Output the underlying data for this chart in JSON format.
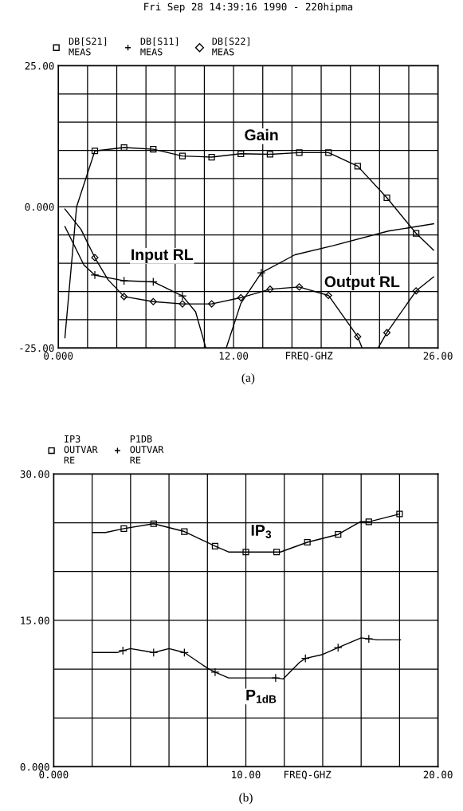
{
  "chart_data": [
    {
      "type": "line",
      "title": "Fri Sep 28 14:39:16 1990 - 220hipma",
      "xlabel": "FREQ-GHZ",
      "xlim": [
        0,
        26
      ],
      "xticks": [
        {
          "value": 0,
          "label": "0.000"
        },
        {
          "value": 2,
          "label": null
        },
        {
          "value": 4,
          "label": null
        },
        {
          "value": 6,
          "label": null
        },
        {
          "value": 8,
          "label": null
        },
        {
          "value": 10,
          "label": null
        },
        {
          "value": 12,
          "label": "12.00"
        },
        {
          "value": 14,
          "label": null
        },
        {
          "value": 16,
          "label": null
        },
        {
          "value": 18,
          "label": null
        },
        {
          "value": 20,
          "label": null
        },
        {
          "value": 22,
          "label": null
        },
        {
          "value": 24,
          "label": null
        },
        {
          "value": 26,
          "label": "26.00"
        }
      ],
      "ylim": [
        -25,
        25
      ],
      "yticks": [
        {
          "value": -25,
          "label": "-25.00"
        },
        {
          "value": -20,
          "label": null
        },
        {
          "value": -15,
          "label": null
        },
        {
          "value": -10,
          "label": null
        },
        {
          "value": -5,
          "label": null
        },
        {
          "value": 0,
          "label": "0.000"
        },
        {
          "value": 5,
          "label": null
        },
        {
          "value": 10,
          "label": null
        },
        {
          "value": 15,
          "label": null
        },
        {
          "value": 20,
          "label": null
        },
        {
          "value": 25,
          "label": "25.00"
        }
      ],
      "grid": true,
      "legend": "top left",
      "line_style": "solid",
      "series": [
        {
          "name": "DB[S21]\nMEAS",
          "type": "scatter",
          "marker": "square",
          "color": "#000000",
          "x": [
            2.5,
            4.5,
            6.5,
            8.5,
            10.5,
            12.5,
            14.5,
            16.5,
            18.5,
            20.5,
            22.5,
            24.5
          ],
          "values": [
            9.9,
            10.5,
            10.2,
            9.0,
            8.8,
            9.4,
            9.3,
            9.6,
            9.6,
            7.2,
            1.6,
            -4.7
          ]
        },
        {
          "name": "DB[S11]\nMEAS",
          "type": "scatter",
          "marker": "cross",
          "color": "#000000",
          "x": [
            2.5,
            4.5,
            6.5,
            8.5,
            13.9
          ],
          "values": [
            -12.1,
            -13.1,
            -13.3,
            -15.8,
            -11.7
          ]
        },
        {
          "name": "DB[S22]\nMEAS",
          "type": "scatter",
          "marker": "diamond",
          "color": "#000000",
          "x": [
            2.5,
            4.5,
            6.5,
            8.5,
            10.5,
            12.5,
            14.5,
            16.5,
            18.5,
            20.5,
            22.5,
            24.5
          ],
          "values": [
            -9.0,
            -15.9,
            -16.8,
            -17.2,
            -17.2,
            -16.1,
            -14.6,
            -14.2,
            -15.7,
            -23.0,
            -22.3,
            -14.9
          ]
        },
        {
          "marker": "none",
          "color": "#000000",
          "x": [
            0.45,
            1.25,
            2.5,
            4.5,
            6.5,
            8.5,
            10.5,
            12.5,
            14.5,
            16.5,
            18.5,
            20.5,
            22.5,
            24.5,
            25.7
          ],
          "values": [
            -23.2,
            0,
            9.9,
            10.5,
            10.2,
            9.0,
            8.8,
            9.4,
            9.3,
            9.6,
            9.6,
            7.2,
            1.6,
            -4.7,
            -7.7
          ]
        },
        {
          "marker": "none",
          "color": "#000000",
          "x": [
            0.45,
            1.75,
            2.5,
            4.5,
            6.5,
            8.5,
            9.4,
            10.1,
            10.8,
            11.5,
            12.5,
            13.9,
            16.2,
            18.8,
            22.6,
            25.7
          ],
          "values": [
            -3.5,
            -10.3,
            -12.1,
            -13.1,
            -13.3,
            -15.8,
            -18.6,
            -25,
            null,
            -25,
            -17.1,
            -11.7,
            -8.5,
            -6.9,
            -4.3,
            -3.0
          ]
        },
        {
          "marker": "none",
          "color": "#000000",
          "x": [
            0.45,
            1.55,
            2.5,
            3.4,
            4.5,
            6.5,
            8.5,
            10.5,
            12.5,
            14.5,
            16.5,
            18.5,
            20.5,
            20.8,
            21.35,
            21.9,
            22.5,
            24.5,
            25.7
          ],
          "values": [
            -0.4,
            -4.0,
            -9.0,
            -12.9,
            -15.9,
            -16.8,
            -17.2,
            -17.2,
            -16.1,
            -14.6,
            -14.2,
            -15.7,
            -23.0,
            -25,
            null,
            -25,
            -22.3,
            -14.9,
            -12.4
          ]
        }
      ],
      "annotations": [
        "Gain",
        "Input RL",
        "Output RL",
        "(a)"
      ]
    },
    {
      "type": "line",
      "xlabel": "FREQ-GHZ",
      "xlim": [
        0,
        20
      ],
      "xticks": [
        {
          "value": 0,
          "label": "0.000"
        },
        {
          "value": 2,
          "label": null
        },
        {
          "value": 4,
          "label": null
        },
        {
          "value": 6,
          "label": null
        },
        {
          "value": 8,
          "label": null
        },
        {
          "value": 10,
          "label": "10.00"
        },
        {
          "value": 12,
          "label": null
        },
        {
          "value": 14,
          "label": null
        },
        {
          "value": 16,
          "label": null
        },
        {
          "value": 18,
          "label": null
        },
        {
          "value": 20,
          "label": "20.00"
        }
      ],
      "ylim": [
        0,
        30
      ],
      "yticks": [
        {
          "value": 0,
          "label": "0.000"
        },
        {
          "value": 5,
          "label": null
        },
        {
          "value": 10,
          "label": null
        },
        {
          "value": 15,
          "label": "15.00"
        },
        {
          "value": 20,
          "label": null
        },
        {
          "value": 25,
          "label": null
        },
        {
          "value": 30,
          "label": "30.00"
        }
      ],
      "grid": true,
      "legend": "top left",
      "line_style": "solid",
      "series": [
        {
          "name": "IP3\nOUTVAR\nRE",
          "type": "scatter",
          "marker": "square",
          "color": "#000000",
          "x": [
            3.65,
            5.2,
            6.8,
            8.4,
            10.0,
            11.6,
            13.2,
            14.8,
            16.4,
            18.0
          ],
          "values": [
            24.4,
            24.9,
            24.1,
            22.6,
            22.0,
            22.0,
            23.0,
            23.8,
            25.1,
            25.9
          ]
        },
        {
          "name": "P1DB\nOUTVAR\nRE",
          "type": "scatter",
          "marker": "cross",
          "color": "#000000",
          "x": [
            3.6,
            5.2,
            6.8,
            8.4,
            11.55,
            13.1,
            14.8,
            16.4
          ],
          "values": [
            11.9,
            11.7,
            11.7,
            9.7,
            9.1,
            11.1,
            12.2,
            13.1
          ]
        },
        {
          "marker": "none",
          "color": "#000000",
          "x": [
            2.0,
            2.7,
            3.65,
            5.2,
            6.8,
            8.4,
            9.1,
            10.0,
            11.6,
            11.8,
            13.2,
            14.8,
            15.95,
            16.4,
            18.0
          ],
          "values": [
            24.0,
            24.0,
            24.4,
            24.9,
            24.1,
            22.6,
            22.0,
            22.0,
            22.0,
            22.0,
            23.0,
            23.8,
            25.1,
            25.1,
            25.9
          ]
        },
        {
          "marker": "none",
          "color": "#000000",
          "x": [
            2.0,
            3.3,
            3.6,
            4.0,
            5.2,
            6.0,
            6.8,
            8.0,
            8.4,
            9.1,
            11.55,
            11.95,
            12.8,
            13.1,
            14.0,
            14.8,
            16.0,
            16.4,
            16.85,
            18.05
          ],
          "values": [
            11.7,
            11.7,
            11.9,
            12.1,
            11.7,
            12.1,
            11.7,
            10.1,
            9.7,
            9.1,
            9.1,
            9.0,
            10.7,
            11.1,
            11.5,
            12.2,
            13.2,
            13.1,
            13.0,
            13.0
          ]
        }
      ],
      "annotations": [
        "IP$_{3}$",
        "P$_{1dB}$",
        "(b)"
      ]
    }
  ]
}
